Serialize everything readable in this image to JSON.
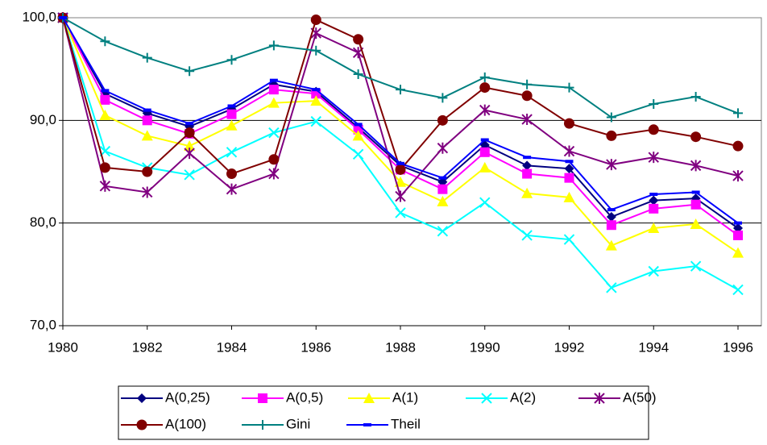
{
  "chart_data": {
    "type": "line",
    "x": [
      1980,
      1981,
      1982,
      1983,
      1984,
      1985,
      1986,
      1987,
      1988,
      1989,
      1990,
      1991,
      1992,
      1993,
      1994,
      1995,
      1996
    ],
    "xlim": [
      1980,
      1996
    ],
    "xticks": [
      1980,
      1982,
      1984,
      1986,
      1988,
      1990,
      1992,
      1994,
      1996
    ],
    "ylim": [
      70,
      100
    ],
    "yticks": [
      {
        "value": 70,
        "label": "70,0"
      },
      {
        "value": 80,
        "label": "80,0"
      },
      {
        "value": 90,
        "label": "90,0"
      },
      {
        "value": 100,
        "label": "100,0"
      }
    ],
    "grid": true,
    "legend": "bottom",
    "series": [
      {
        "name": "A(0,25)",
        "color": "#000080",
        "marker": "diamond",
        "values": [
          100,
          92.6,
          90.7,
          89.4,
          91.1,
          93.5,
          92.8,
          89.3,
          85.6,
          84.0,
          87.6,
          85.6,
          85.3,
          80.6,
          82.2,
          82.4,
          79.5
        ]
      },
      {
        "name": "A(0,5)",
        "color": "#ff00ff",
        "marker": "square",
        "values": [
          100,
          92.0,
          90.0,
          88.7,
          90.6,
          93.0,
          92.6,
          89.1,
          85.2,
          83.3,
          86.9,
          84.8,
          84.4,
          79.8,
          81.4,
          81.8,
          78.8
        ]
      },
      {
        "name": "A(1)",
        "color": "#ffff00",
        "marker": "triangle",
        "values": [
          100,
          90.5,
          88.5,
          87.5,
          89.5,
          91.7,
          91.9,
          88.5,
          84.0,
          82.1,
          85.4,
          82.9,
          82.5,
          77.8,
          79.5,
          79.9,
          77.1
        ]
      },
      {
        "name": "A(2)",
        "color": "#00ffff",
        "marker": "x",
        "values": [
          100,
          87.0,
          85.4,
          84.7,
          86.9,
          88.8,
          89.9,
          86.7,
          81.0,
          79.2,
          82.0,
          78.8,
          78.4,
          73.7,
          75.3,
          75.8,
          73.5
        ]
      },
      {
        "name": "A(50)",
        "color": "#800080",
        "marker": "star",
        "values": [
          100,
          83.6,
          83.0,
          86.8,
          83.3,
          84.8,
          98.5,
          96.6,
          82.6,
          87.3,
          91.0,
          90.1,
          87.0,
          85.7,
          86.4,
          85.6,
          84.6
        ]
      },
      {
        "name": "A(100)",
        "color": "#800000",
        "marker": "circle",
        "values": [
          100,
          85.4,
          85.0,
          88.8,
          84.8,
          86.2,
          99.8,
          97.9,
          85.2,
          90.0,
          93.2,
          92.4,
          89.7,
          88.5,
          89.1,
          88.4,
          87.5
        ]
      },
      {
        "name": "Gini",
        "color": "#008080",
        "marker": "plus",
        "values": [
          100,
          97.7,
          96.1,
          94.8,
          95.9,
          97.3,
          96.8,
          94.5,
          93.0,
          92.2,
          94.2,
          93.5,
          93.2,
          90.3,
          91.6,
          92.3,
          90.7
        ]
      },
      {
        "name": "Theil",
        "color": "#0000ff",
        "marker": "dash",
        "values": [
          100,
          92.9,
          91.0,
          89.7,
          91.4,
          93.9,
          93.0,
          89.6,
          85.8,
          84.4,
          88.1,
          86.4,
          86.0,
          81.3,
          82.8,
          83.0,
          80.0
        ]
      }
    ]
  }
}
